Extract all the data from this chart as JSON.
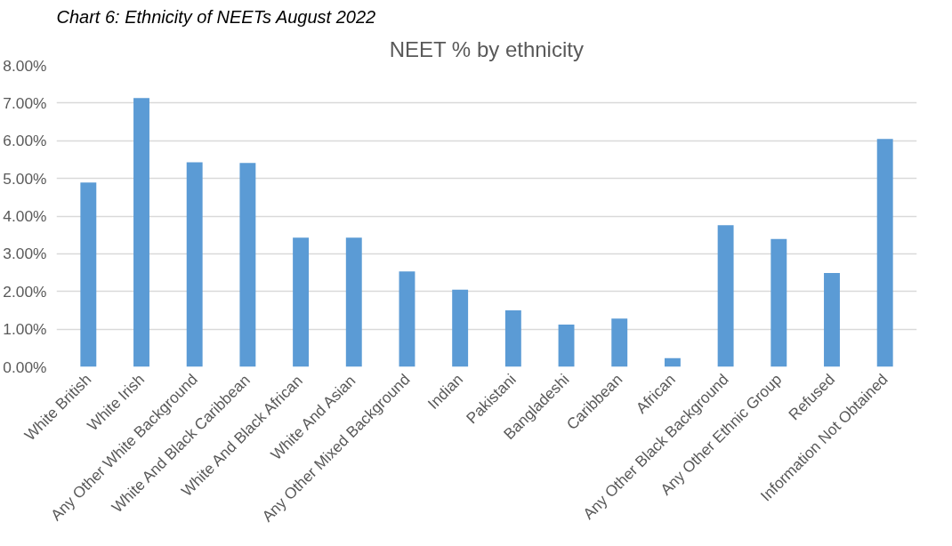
{
  "chart_data": {
    "type": "bar",
    "title": "NEET % by ethnicity",
    "annotations": [
      "Chart 6: Ethnicity of NEETs August 2022"
    ],
    "categories": [
      "White British",
      "White Irish",
      "Any Other White Background",
      "White And Black Caribbean",
      "White And Black African",
      "White And Asian",
      "Any Other Mixed Background",
      "Indian",
      "Pakistani",
      "Bangladeshi",
      "Caribbean",
      "African",
      "Any Other Black Background",
      "Any Other Ethnic Group",
      "Refused",
      "Information Not Obtained"
    ],
    "values": [
      4.89,
      7.13,
      5.43,
      5.41,
      3.43,
      3.43,
      2.53,
      2.05,
      1.5,
      1.12,
      1.28,
      0.23,
      3.76,
      3.39,
      2.49,
      6.05
    ],
    "color": "#5b9bd5",
    "ylim": [
      0,
      8
    ],
    "yticks": [
      {
        "value": 0,
        "label": "0.00%"
      },
      {
        "value": 1,
        "label": "1.00%"
      },
      {
        "value": 2,
        "label": "2.00%"
      },
      {
        "value": 3,
        "label": "3.00%"
      },
      {
        "value": 4,
        "label": "4.00%"
      },
      {
        "value": 5,
        "label": "5.00%"
      },
      {
        "value": 6,
        "label": "6.00%"
      },
      {
        "value": 7,
        "label": "7.00%"
      },
      {
        "value": 8,
        "label": "8.00%"
      }
    ],
    "grid": "y"
  }
}
